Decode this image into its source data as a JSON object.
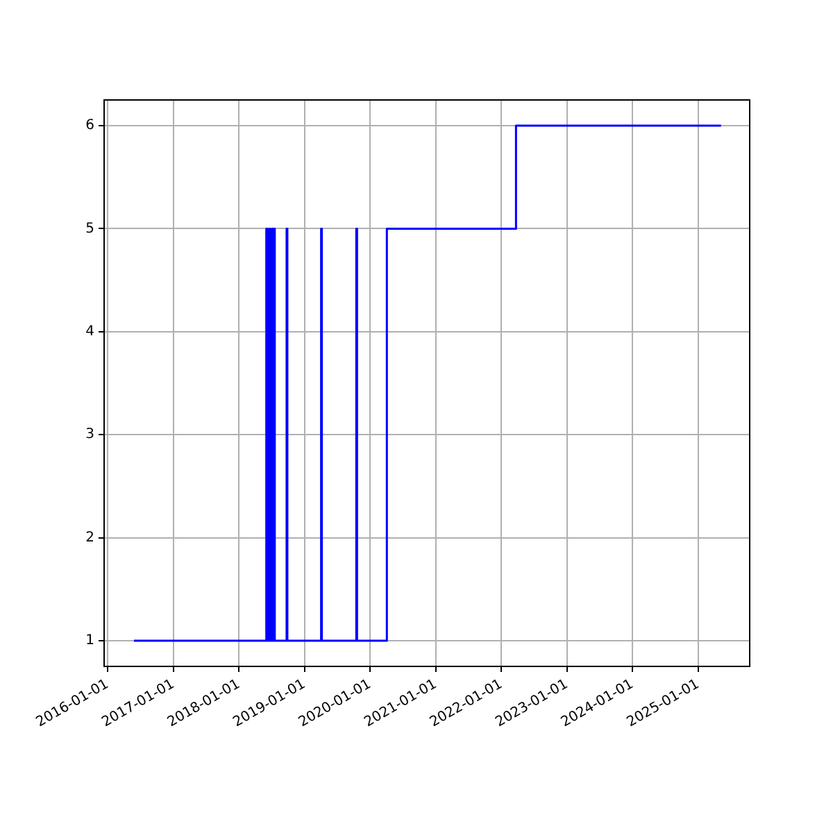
{
  "chart_data": {
    "type": "step",
    "x": [
      "2016-05-27",
      "2018-06-03",
      "2018-06-10",
      "2018-06-20",
      "2018-06-25",
      "2018-07-05",
      "2018-07-10",
      "2018-07-15",
      "2018-07-20",
      "2018-09-24",
      "2018-09-28",
      "2019-04-04",
      "2019-04-08",
      "2019-10-17",
      "2019-10-21",
      "2020-04-04",
      "2022-03-24",
      "2025-05-08"
    ],
    "series": [
      {
        "color": "#0000ff",
        "values": [
          1,
          5,
          1,
          5,
          1,
          5,
          1,
          5,
          1,
          5,
          1,
          5,
          1,
          5,
          1,
          5,
          6,
          6
        ]
      }
    ],
    "xlim": [
      "2015-12-13",
      "2025-10-15"
    ],
    "xticks": [
      "2016-01-01",
      "2017-01-01",
      "2018-01-01",
      "2019-01-01",
      "2020-01-01",
      "2021-01-01",
      "2022-01-01",
      "2023-01-01",
      "2024-01-01",
      "2025-01-01"
    ],
    "ylim": [
      0.75,
      6.25
    ],
    "yticks": [
      1,
      2,
      3,
      4,
      5,
      6
    ],
    "grid": true
  }
}
